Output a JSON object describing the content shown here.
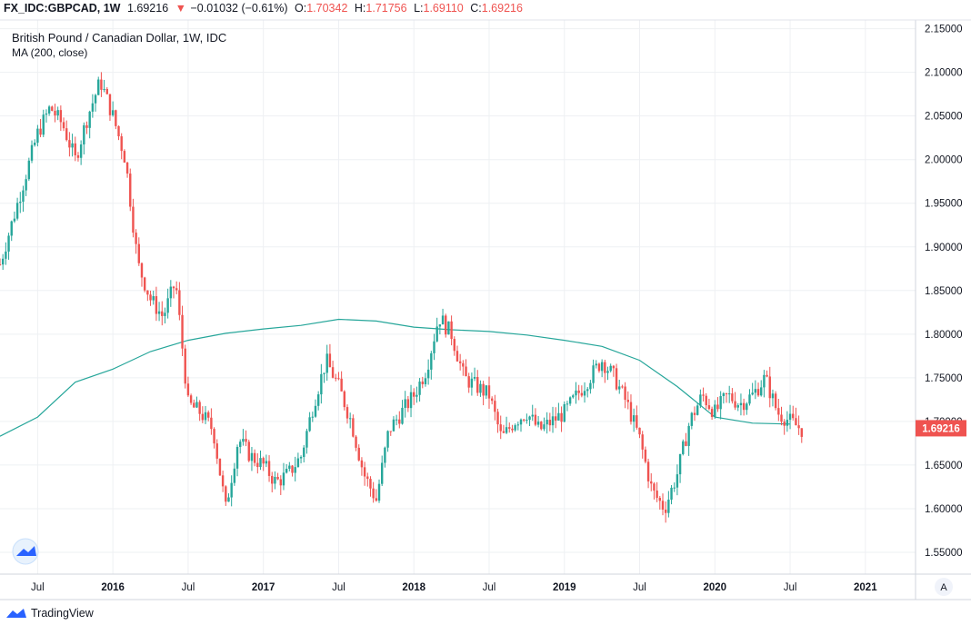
{
  "header": {
    "symbol": "FX_IDC:GBPCAD, 1W",
    "last": "1.69216",
    "arrow": "▼",
    "change": "−0.01032 (−0.61%)",
    "o_label": "O:",
    "o_value": "1.70342",
    "h_label": "H:",
    "h_value": "1.71756",
    "l_label": "L:",
    "l_value": "1.69110",
    "c_label": "C:",
    "c_value": "1.69216"
  },
  "legend": {
    "title": "British Pound / Canadian Dollar, 1W, IDC",
    "ma": "MA (200, close)"
  },
  "footer": {
    "brand": "TradingView"
  },
  "axis_button": "A",
  "colors": {
    "up": "#26a69a",
    "down": "#ef5350",
    "ma": "#26a69a",
    "grid": "#eef0f3",
    "price_tag": "#ef5350"
  },
  "chart_data": {
    "type": "candlestick",
    "symbol": "GBPCAD",
    "interval": "1W",
    "x_start": "2015-04",
    "x_end": "2021-05",
    "ylim": [
      1.525,
      2.16
    ],
    "y_ticks": [
      1.55,
      1.6,
      1.65,
      1.7,
      1.75,
      1.8,
      1.85,
      1.9,
      1.95,
      2.0,
      2.05,
      2.1,
      2.15
    ],
    "y_tick_labels": [
      "1.55000",
      "1.60000",
      "1.65000",
      "1.70000",
      "1.75000",
      "1.80000",
      "1.85000",
      "1.90000",
      "1.95000",
      "2.00000",
      "2.05000",
      "2.10000",
      "2.15000"
    ],
    "x_ticks": [
      {
        "label": "Jul",
        "date": "2015-07"
      },
      {
        "label": "2016",
        "date": "2016-01"
      },
      {
        "label": "Jul",
        "date": "2016-07"
      },
      {
        "label": "2017",
        "date": "2017-01"
      },
      {
        "label": "Jul",
        "date": "2017-07"
      },
      {
        "label": "2018",
        "date": "2018-01"
      },
      {
        "label": "Jul",
        "date": "2018-07"
      },
      {
        "label": "2019",
        "date": "2019-01"
      },
      {
        "label": "Jul",
        "date": "2019-07"
      },
      {
        "label": "2020",
        "date": "2020-01"
      },
      {
        "label": "Jul",
        "date": "2020-07"
      },
      {
        "label": "2021",
        "date": "2021-01"
      }
    ],
    "last_price": 1.69216,
    "last_price_label": "1.69216",
    "price_path": [
      [
        "2015-04",
        1.88
      ],
      [
        "2015-05",
        1.93
      ],
      [
        "2015-06",
        1.98
      ],
      [
        "2015-07",
        2.03
      ],
      [
        "2015-08",
        2.06
      ],
      [
        "2015-09",
        2.04
      ],
      [
        "2015-10",
        2.0
      ],
      [
        "2015-11",
        2.05
      ],
      [
        "2015-12",
        2.09
      ],
      [
        "2016-01",
        2.05
      ],
      [
        "2016-02",
        2.0
      ],
      [
        "2016-03",
        1.88
      ],
      [
        "2016-04",
        1.84
      ],
      [
        "2016-05",
        1.82
      ],
      [
        "2016-06",
        1.86
      ],
      [
        "2016-07",
        1.72
      ],
      [
        "2016-08",
        1.71
      ],
      [
        "2016-09",
        1.69
      ],
      [
        "2016-10",
        1.6
      ],
      [
        "2016-11",
        1.68
      ],
      [
        "2016-12",
        1.66
      ],
      [
        "2017-01",
        1.65
      ],
      [
        "2017-02",
        1.63
      ],
      [
        "2017-03",
        1.64
      ],
      [
        "2017-04",
        1.66
      ],
      [
        "2017-05",
        1.72
      ],
      [
        "2017-06",
        1.77
      ],
      [
        "2017-07",
        1.74
      ],
      [
        "2017-08",
        1.7
      ],
      [
        "2017-09",
        1.64
      ],
      [
        "2017-10",
        1.61
      ],
      [
        "2017-11",
        1.69
      ],
      [
        "2017-12",
        1.71
      ],
      [
        "2018-01",
        1.73
      ],
      [
        "2018-02",
        1.76
      ],
      [
        "2018-03",
        1.82
      ],
      [
        "2018-04",
        1.8
      ],
      [
        "2018-05",
        1.75
      ],
      [
        "2018-06",
        1.74
      ],
      [
        "2018-07",
        1.73
      ],
      [
        "2018-08",
        1.68
      ],
      [
        "2018-09",
        1.7
      ],
      [
        "2018-10",
        1.71
      ],
      [
        "2018-11",
        1.69
      ],
      [
        "2018-12",
        1.7
      ],
      [
        "2019-01",
        1.71
      ],
      [
        "2019-02",
        1.73
      ],
      [
        "2019-03",
        1.75
      ],
      [
        "2019-04",
        1.77
      ],
      [
        "2019-05",
        1.75
      ],
      [
        "2019-06",
        1.72
      ],
      [
        "2019-07",
        1.68
      ],
      [
        "2019-08",
        1.62
      ],
      [
        "2019-09",
        1.6
      ],
      [
        "2019-10",
        1.64
      ],
      [
        "2019-11",
        1.7
      ],
      [
        "2019-12",
        1.73
      ],
      [
        "2020-01",
        1.71
      ],
      [
        "2020-02",
        1.73
      ],
      [
        "2020-03",
        1.72
      ],
      [
        "2020-04",
        1.73
      ],
      [
        "2020-05",
        1.75
      ],
      [
        "2020-06",
        1.71
      ],
      [
        "2020-07",
        1.7
      ],
      [
        "2020-08",
        1.69
      ]
    ],
    "ma_200": [
      [
        "2015-04",
        1.683
      ],
      [
        "2015-07",
        1.705
      ],
      [
        "2015-10",
        1.745
      ],
      [
        "2016-01",
        1.76
      ],
      [
        "2016-04",
        1.78
      ],
      [
        "2016-07",
        1.793
      ],
      [
        "2016-10",
        1.801
      ],
      [
        "2017-01",
        1.806
      ],
      [
        "2017-04",
        1.81
      ],
      [
        "2017-07",
        1.817
      ],
      [
        "2017-10",
        1.815
      ],
      [
        "2018-01",
        1.808
      ],
      [
        "2018-04",
        1.805
      ],
      [
        "2018-07",
        1.803
      ],
      [
        "2018-10",
        1.799
      ],
      [
        "2019-01",
        1.793
      ],
      [
        "2019-04",
        1.786
      ],
      [
        "2019-07",
        1.77
      ],
      [
        "2019-10",
        1.74
      ],
      [
        "2020-01",
        1.705
      ],
      [
        "2020-04",
        1.698
      ],
      [
        "2020-07",
        1.697
      ]
    ]
  }
}
